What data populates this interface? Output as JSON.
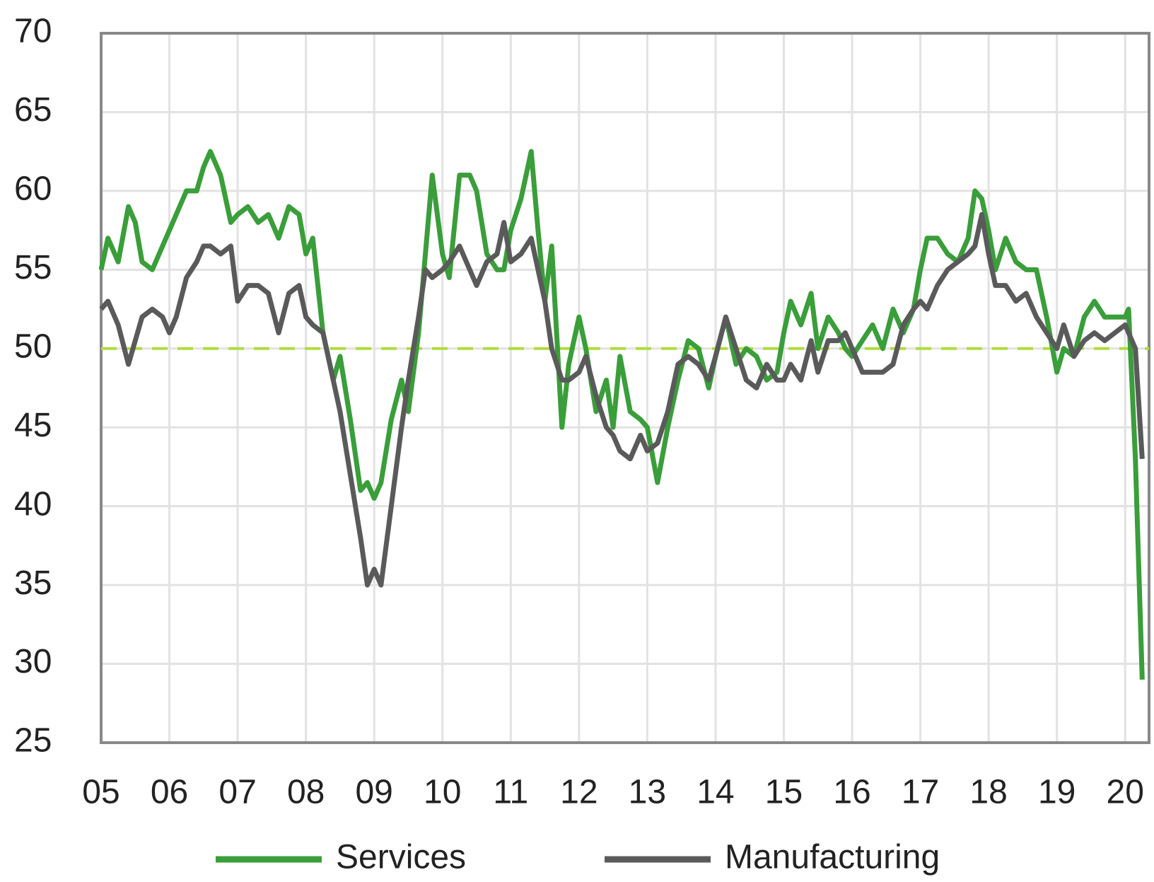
{
  "chart_data": {
    "type": "line",
    "x": [
      2005.0,
      2005.1,
      2005.25,
      2005.4,
      2005.5,
      2005.6,
      2005.75,
      2005.9,
      2006.0,
      2006.1,
      2006.25,
      2006.4,
      2006.5,
      2006.6,
      2006.75,
      2006.9,
      2007.0,
      2007.15,
      2007.3,
      2007.45,
      2007.6,
      2007.75,
      2007.9,
      2008.0,
      2008.1,
      2008.25,
      2008.4,
      2008.5,
      2008.65,
      2008.8,
      2008.9,
      2009.0,
      2009.1,
      2009.25,
      2009.4,
      2009.5,
      2009.65,
      2009.75,
      2009.85,
      2010.0,
      2010.1,
      2010.25,
      2010.4,
      2010.5,
      2010.65,
      2010.8,
      2010.9,
      2011.0,
      2011.15,
      2011.3,
      2011.4,
      2011.5,
      2011.6,
      2011.75,
      2011.85,
      2012.0,
      2012.1,
      2012.25,
      2012.4,
      2012.5,
      2012.6,
      2012.75,
      2012.9,
      2013.0,
      2013.15,
      2013.3,
      2013.45,
      2013.6,
      2013.75,
      2013.9,
      2014.0,
      2014.15,
      2014.3,
      2014.45,
      2014.6,
      2014.75,
      2014.9,
      2015.0,
      2015.1,
      2015.25,
      2015.4,
      2015.5,
      2015.65,
      2015.8,
      2015.9,
      2016.0,
      2016.15,
      2016.3,
      2016.45,
      2016.6,
      2016.75,
      2016.9,
      2017.0,
      2017.1,
      2017.25,
      2017.4,
      2017.55,
      2017.7,
      2017.8,
      2017.9,
      2018.0,
      2018.1,
      2018.25,
      2018.4,
      2018.55,
      2018.7,
      2018.85,
      2019.0,
      2019.1,
      2019.25,
      2019.4,
      2019.55,
      2019.7,
      2019.85,
      2020.0,
      2020.05,
      2020.15,
      2020.25
    ],
    "series": [
      {
        "name": "Services",
        "color": "#3a9e3a",
        "values": [
          55,
          57,
          55.5,
          59,
          58,
          55.5,
          55,
          56.5,
          57.5,
          58.5,
          60,
          60,
          61.5,
          62.5,
          61,
          58,
          58.5,
          59,
          58,
          58.5,
          57,
          59,
          58.5,
          56,
          57,
          51,
          48,
          49.5,
          45.5,
          41,
          41.5,
          40.5,
          41.5,
          45.5,
          48,
          46,
          51,
          56,
          61,
          56,
          54.5,
          61,
          61,
          60,
          56,
          55,
          55,
          57.5,
          59.5,
          62.5,
          57.5,
          53,
          56.5,
          45,
          49,
          52,
          50,
          46,
          48,
          45,
          49.5,
          46,
          45.5,
          45,
          41.5,
          45,
          48,
          50.5,
          50,
          47.5,
          49.5,
          52,
          49,
          50,
          49.5,
          48,
          48.5,
          51,
          53,
          51.5,
          53.5,
          50,
          52,
          51,
          50,
          49.5,
          50.5,
          51.5,
          50,
          52.5,
          51,
          52.5,
          55,
          57,
          57,
          56,
          55.5,
          57,
          60,
          59.5,
          57.5,
          55,
          57,
          55.5,
          55,
          55,
          52,
          48.5,
          50,
          49.5,
          52,
          53,
          52,
          52,
          52,
          52.5,
          43,
          29
        ]
      },
      {
        "name": "Manufacturing",
        "color": "#5a5a5a",
        "values": [
          52.5,
          53,
          51.5,
          49,
          50.5,
          52,
          52.5,
          52,
          51,
          52,
          54.5,
          55.5,
          56.5,
          56.5,
          56,
          56.5,
          53,
          54,
          54,
          53.5,
          51,
          53.5,
          54,
          52,
          51.5,
          51,
          48,
          46,
          42,
          38,
          35,
          36,
          35,
          40,
          45,
          48,
          52,
          55,
          54.5,
          55,
          55.5,
          56.5,
          55,
          54,
          55.5,
          56,
          58,
          55.5,
          56,
          57,
          55,
          53,
          50,
          48,
          48,
          48.5,
          49.5,
          47,
          45,
          44.5,
          43.5,
          43,
          44.5,
          43.5,
          44,
          46,
          49,
          49.5,
          49,
          48,
          49.5,
          52,
          50,
          48,
          47.5,
          49,
          48,
          48,
          49,
          48,
          50.5,
          48.5,
          50.5,
          50.5,
          51,
          50,
          48.5,
          48.5,
          48.5,
          49,
          51.5,
          52.5,
          53,
          52.5,
          54,
          55,
          55.5,
          56,
          56.5,
          58.5,
          56,
          54,
          54,
          53,
          53.5,
          52,
          51,
          50,
          51.5,
          49.5,
          50.5,
          51,
          50.5,
          51,
          51.5,
          51,
          50,
          43
        ]
      }
    ],
    "xlim": [
      2005,
      2020.35
    ],
    "xticks": [
      {
        "value": 2005,
        "label": "05"
      },
      {
        "value": 2006,
        "label": "06"
      },
      {
        "value": 2007,
        "label": "07"
      },
      {
        "value": 2008,
        "label": "08"
      },
      {
        "value": 2009,
        "label": "09"
      },
      {
        "value": 2010,
        "label": "10"
      },
      {
        "value": 2011,
        "label": "11"
      },
      {
        "value": 2012,
        "label": "12"
      },
      {
        "value": 2013,
        "label": "13"
      },
      {
        "value": 2014,
        "label": "14"
      },
      {
        "value": 2015,
        "label": "15"
      },
      {
        "value": 2016,
        "label": "16"
      },
      {
        "value": 2017,
        "label": "17"
      },
      {
        "value": 2018,
        "label": "18"
      },
      {
        "value": 2019,
        "label": "19"
      },
      {
        "value": 2020,
        "label": "20"
      }
    ],
    "ylim": [
      25,
      70
    ],
    "yticks": [
      25,
      30,
      35,
      40,
      45,
      50,
      55,
      60,
      65,
      70
    ],
    "grid": true,
    "reference_line": {
      "value": 50,
      "color": "#b0dc3c"
    },
    "legend": "bottom"
  }
}
